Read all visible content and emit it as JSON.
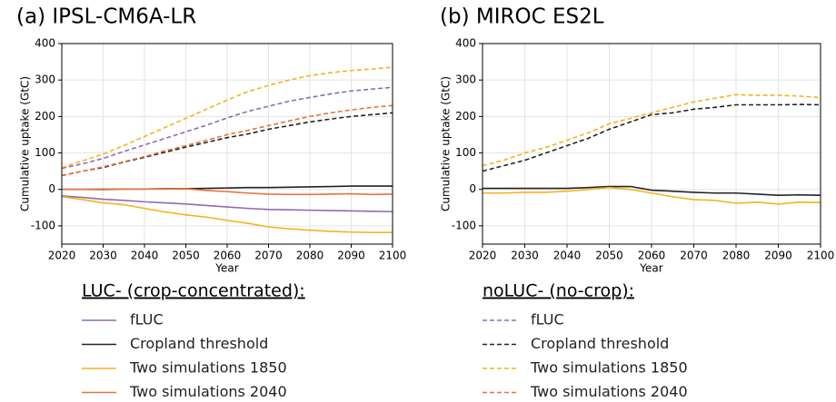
{
  "chart_data": [
    {
      "type": "line",
      "title": "(a) IPSL-CM6A-LR",
      "xlabel": "Year",
      "ylabel": "Cumulative uptake (GtC)",
      "x": [
        2020,
        2025,
        2030,
        2035,
        2040,
        2045,
        2050,
        2055,
        2060,
        2065,
        2070,
        2075,
        2080,
        2085,
        2090,
        2095,
        2100
      ],
      "xlim": [
        2020,
        2100
      ],
      "xticks": [
        2020,
        2030,
        2040,
        2050,
        2060,
        2070,
        2080,
        2090,
        2100
      ],
      "ylim": [
        -150,
        400
      ],
      "yticks": [
        -100,
        0,
        100,
        200,
        300,
        400
      ],
      "grid": true,
      "series": [
        {
          "name": "fLUC",
          "color": "#8e6bb0",
          "style": "solid",
          "values": [
            -18,
            -22,
            -27,
            -30,
            -34,
            -37,
            -40,
            -44,
            -48,
            -52,
            -55,
            -56,
            -57,
            -58,
            -59,
            -60,
            -61
          ]
        },
        {
          "name": "Cropland threshold",
          "color": "#222222",
          "style": "solid",
          "values": [
            0,
            0,
            0,
            1,
            1,
            2,
            2,
            3,
            4,
            5,
            5,
            6,
            7,
            8,
            9,
            9,
            9
          ]
        },
        {
          "name": "Two simulations 1850",
          "color": "#f6b21b",
          "style": "solid",
          "values": [
            -20,
            -28,
            -37,
            -42,
            -52,
            -62,
            -70,
            -76,
            -85,
            -93,
            -103,
            -108,
            -112,
            -115,
            -117,
            -118,
            -118
          ]
        },
        {
          "name": "Two simulations 2040",
          "color": "#e8733a",
          "style": "solid",
          "values": [
            0,
            0,
            1,
            1,
            1,
            1,
            2,
            -3,
            -6,
            -10,
            -13,
            -14,
            -14,
            -13,
            -12,
            -14,
            -13
          ]
        },
        {
          "name": "fLUC",
          "color": "#8e6bb0",
          "style": "dashed",
          "values": [
            58,
            70,
            85,
            104,
            122,
            140,
            158,
            176,
            196,
            214,
            228,
            242,
            252,
            262,
            270,
            275,
            280
          ]
        },
        {
          "name": "Cropland threshold",
          "color": "#222222",
          "style": "dashed",
          "values": [
            38,
            50,
            60,
            75,
            88,
            102,
            116,
            129,
            142,
            152,
            165,
            175,
            185,
            193,
            200,
            205,
            210
          ]
        },
        {
          "name": "Two simulations 1850",
          "color": "#f6b21b",
          "style": "dashed",
          "values": [
            60,
            78,
            97,
            120,
            145,
            170,
            195,
            220,
            245,
            268,
            285,
            300,
            312,
            320,
            326,
            330,
            335
          ]
        },
        {
          "name": "Two simulations 2040",
          "color": "#e8733a",
          "style": "dashed",
          "values": [
            38,
            50,
            62,
            76,
            90,
            106,
            120,
            135,
            150,
            162,
            175,
            188,
            200,
            210,
            218,
            225,
            230
          ]
        }
      ]
    },
    {
      "type": "line",
      "title": "(b) MIROC ES2L",
      "xlabel": "Year",
      "ylabel": "Cumulative uptake (GtC)",
      "x": [
        2020,
        2025,
        2030,
        2035,
        2040,
        2045,
        2050,
        2055,
        2060,
        2065,
        2070,
        2075,
        2080,
        2085,
        2090,
        2095,
        2100
      ],
      "xlim": [
        2020,
        2100
      ],
      "xticks": [
        2020,
        2030,
        2040,
        2050,
        2060,
        2070,
        2080,
        2090,
        2100
      ],
      "ylim": [
        -150,
        400
      ],
      "yticks": [
        -100,
        0,
        100,
        200,
        300,
        400
      ],
      "grid": true,
      "series": [
        {
          "name": "Cropland threshold",
          "color": "#222222",
          "style": "solid",
          "values": [
            3,
            3,
            3,
            3,
            3,
            5,
            8,
            8,
            -2,
            -5,
            -8,
            -10,
            -10,
            -13,
            -16,
            -15,
            -16
          ]
        },
        {
          "name": "Two simulations 1850",
          "color": "#f6b21b",
          "style": "solid",
          "values": [
            -10,
            -10,
            -8,
            -8,
            -5,
            0,
            5,
            0,
            -10,
            -20,
            -28,
            -30,
            -38,
            -35,
            -40,
            -35,
            -36
          ]
        },
        {
          "name": "Cropland threshold",
          "color": "#222222",
          "style": "dashed",
          "values": [
            50,
            65,
            80,
            100,
            120,
            140,
            165,
            185,
            205,
            210,
            220,
            225,
            232,
            232,
            232,
            233,
            232
          ]
        },
        {
          "name": "Two simulations 1850",
          "color": "#f6b21b",
          "style": "dashed",
          "values": [
            65,
            80,
            100,
            115,
            135,
            155,
            180,
            195,
            210,
            225,
            240,
            250,
            260,
            258,
            258,
            256,
            252
          ]
        }
      ]
    }
  ],
  "legends": [
    {
      "title": "LUC- (crop-concentrated):",
      "style": "solid"
    },
    {
      "title": "noLUC- (no-crop):",
      "style": "dashed"
    }
  ]
}
